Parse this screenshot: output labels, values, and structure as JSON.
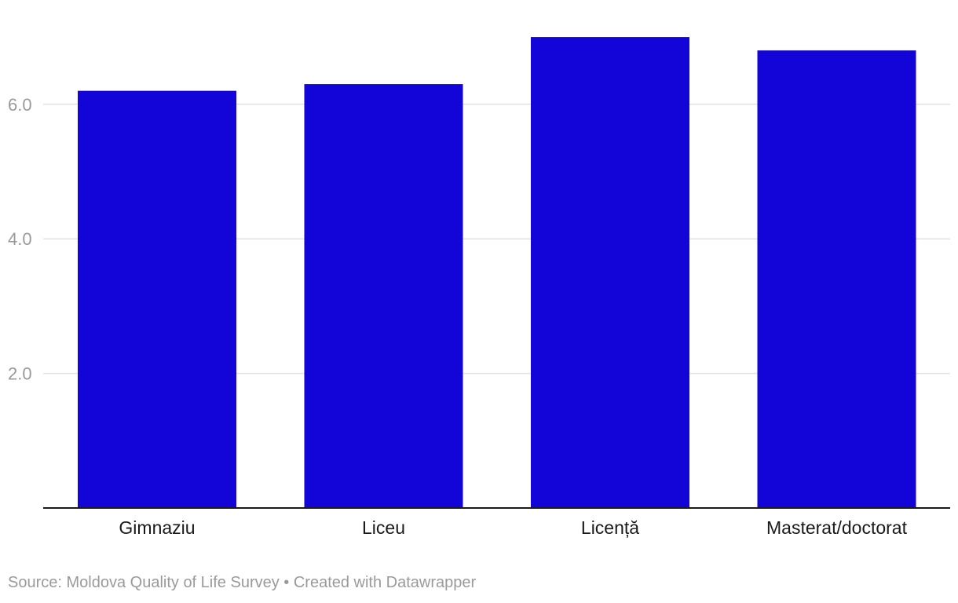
{
  "chart_data": {
    "type": "bar",
    "categories": [
      "Gimnaziu",
      "Liceu",
      "Licență",
      "Masterat/doctorat"
    ],
    "values": [
      6.2,
      6.3,
      7.0,
      6.8
    ],
    "title": "",
    "xlabel": "",
    "ylabel": "",
    "ylim": [
      0,
      7.0
    ],
    "yticks": [
      2.0,
      4.0,
      6.0
    ],
    "ytick_labels": [
      "2.0",
      "4.0",
      "6.0"
    ],
    "grid": true,
    "legend": "none"
  },
  "colors": {
    "bar": "#1304d8",
    "gridline": "#e2e2e2",
    "baseline": "#1a1a1a"
  },
  "footer": {
    "source": "Source: Moldova Quality of Life Survey • Created with Datawrapper"
  }
}
